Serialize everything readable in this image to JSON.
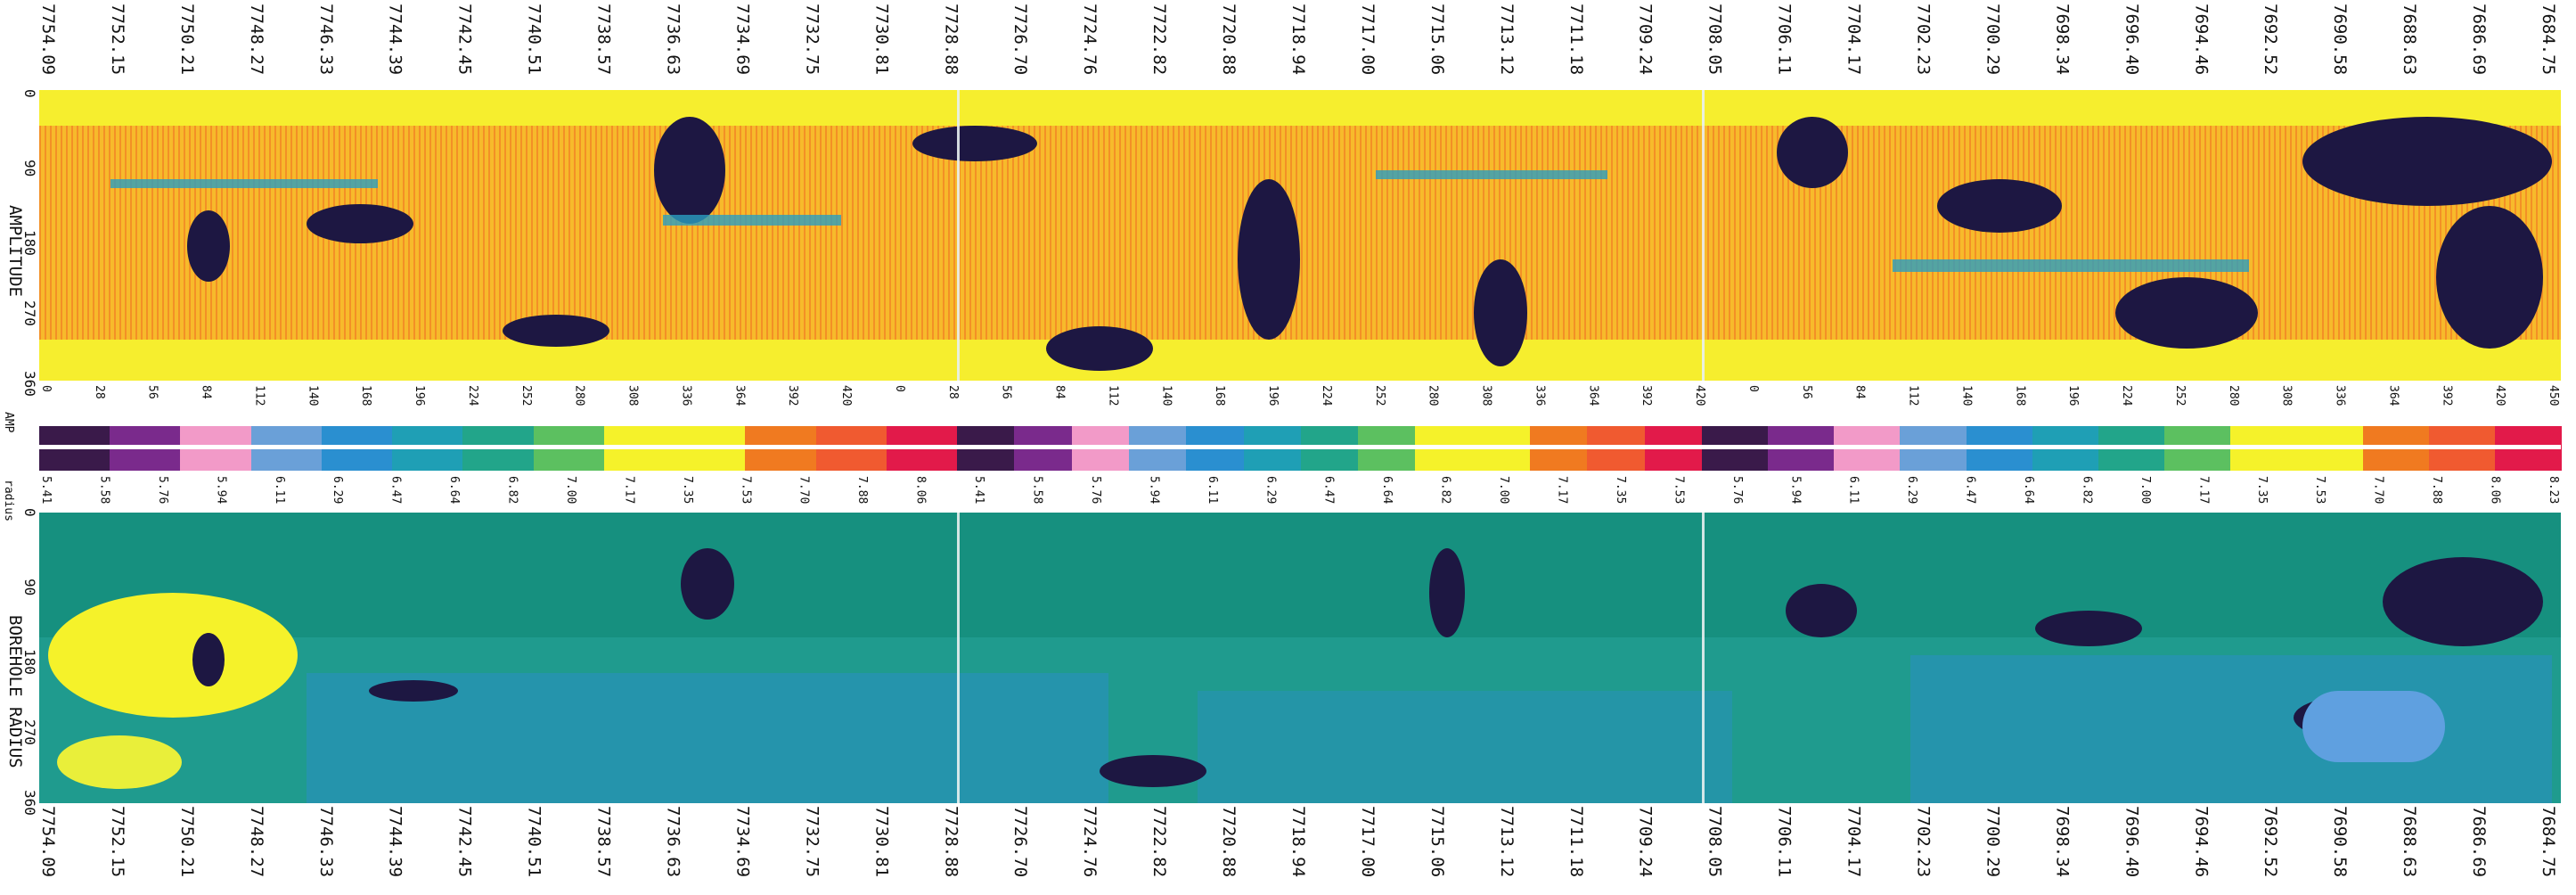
{
  "amplitude_track": {
    "title": "AMPLITUDE",
    "azimuth_ticks": [
      "0",
      "90",
      "180",
      "270",
      "360"
    ]
  },
  "radius_track": {
    "title": "BOREHOLE RADIUS",
    "azimuth_ticks": [
      "0",
      "90",
      "180",
      "270",
      "360"
    ]
  },
  "top_depths": [
    "7754.09",
    "7752.15",
    "7750.21",
    "7748.27",
    "7746.33",
    "7744.39",
    "7742.45",
    "7740.51",
    "7738.57",
    "7736.63",
    "7734.69",
    "7732.75",
    "7730.81",
    "7728.88",
    "7726.70",
    "7724.76",
    "7722.82",
    "7720.88",
    "7718.94",
    "7717.00",
    "7715.06",
    "7713.12",
    "7711.18",
    "7709.24",
    "7708.05",
    "7706.11",
    "7704.17",
    "7702.23",
    "7700.29",
    "7698.34",
    "7696.40",
    "7694.46",
    "7692.52",
    "7690.58",
    "7688.63",
    "7686.69",
    "7684.75"
  ],
  "bottom_depths": [
    "7754.09",
    "7752.15",
    "7750.21",
    "7748.27",
    "7746.33",
    "7744.39",
    "7742.45",
    "7740.51",
    "7738.57",
    "7736.63",
    "7734.69",
    "7732.75",
    "7730.81",
    "7728.88",
    "7726.70",
    "7724.76",
    "7722.82",
    "7720.88",
    "7718.94",
    "7717.00",
    "7715.06",
    "7713.12",
    "7711.18",
    "7709.24",
    "7708.05",
    "7706.11",
    "7704.17",
    "7702.23",
    "7700.29",
    "7698.34",
    "7696.40",
    "7694.46",
    "7692.52",
    "7690.58",
    "7688.63",
    "7686.69",
    "7684.75"
  ],
  "colorbar": {
    "amp_label": "AMP",
    "radius_label": "radius",
    "amp_ticks": [
      "0",
      "28",
      "56",
      "84",
      "112",
      "140",
      "168",
      "196",
      "224",
      "252",
      "280",
      "308",
      "336",
      "364",
      "392",
      "420",
      "0",
      "28",
      "56",
      "84",
      "112",
      "140",
      "168",
      "196",
      "224",
      "252",
      "280",
      "308",
      "336",
      "364",
      "392",
      "420",
      "0",
      "56",
      "84",
      "112",
      "140",
      "168",
      "196",
      "224",
      "252",
      "280",
      "308",
      "336",
      "364",
      "392",
      "420",
      "450"
    ],
    "radius_ticks": [
      "5.41",
      "5.58",
      "5.76",
      "5.94",
      "6.11",
      "6.29",
      "6.47",
      "6.64",
      "6.82",
      "7.00",
      "7.17",
      "7.35",
      "7.53",
      "7.70",
      "7.88",
      "8.06",
      "5.41",
      "5.58",
      "5.76",
      "5.94",
      "6.11",
      "6.29",
      "6.47",
      "6.64",
      "6.82",
      "7.00",
      "7.17",
      "7.35",
      "7.53",
      "5.76",
      "5.94",
      "6.11",
      "6.29",
      "6.47",
      "6.64",
      "6.82",
      "7.00",
      "7.17",
      "7.35",
      "7.53",
      "7.70",
      "7.88",
      "8.06",
      "8.23"
    ],
    "colors": [
      "#3a1a4a",
      "#7a2a8c",
      "#f29ac8",
      "#6aa0d8",
      "#2a8fd0",
      "#1f9fb5",
      "#22a58a",
      "#5cc060",
      "#f5f22a",
      "#f5f22a",
      "#f07a20",
      "#f05a30",
      "#e21a4a"
    ]
  }
}
